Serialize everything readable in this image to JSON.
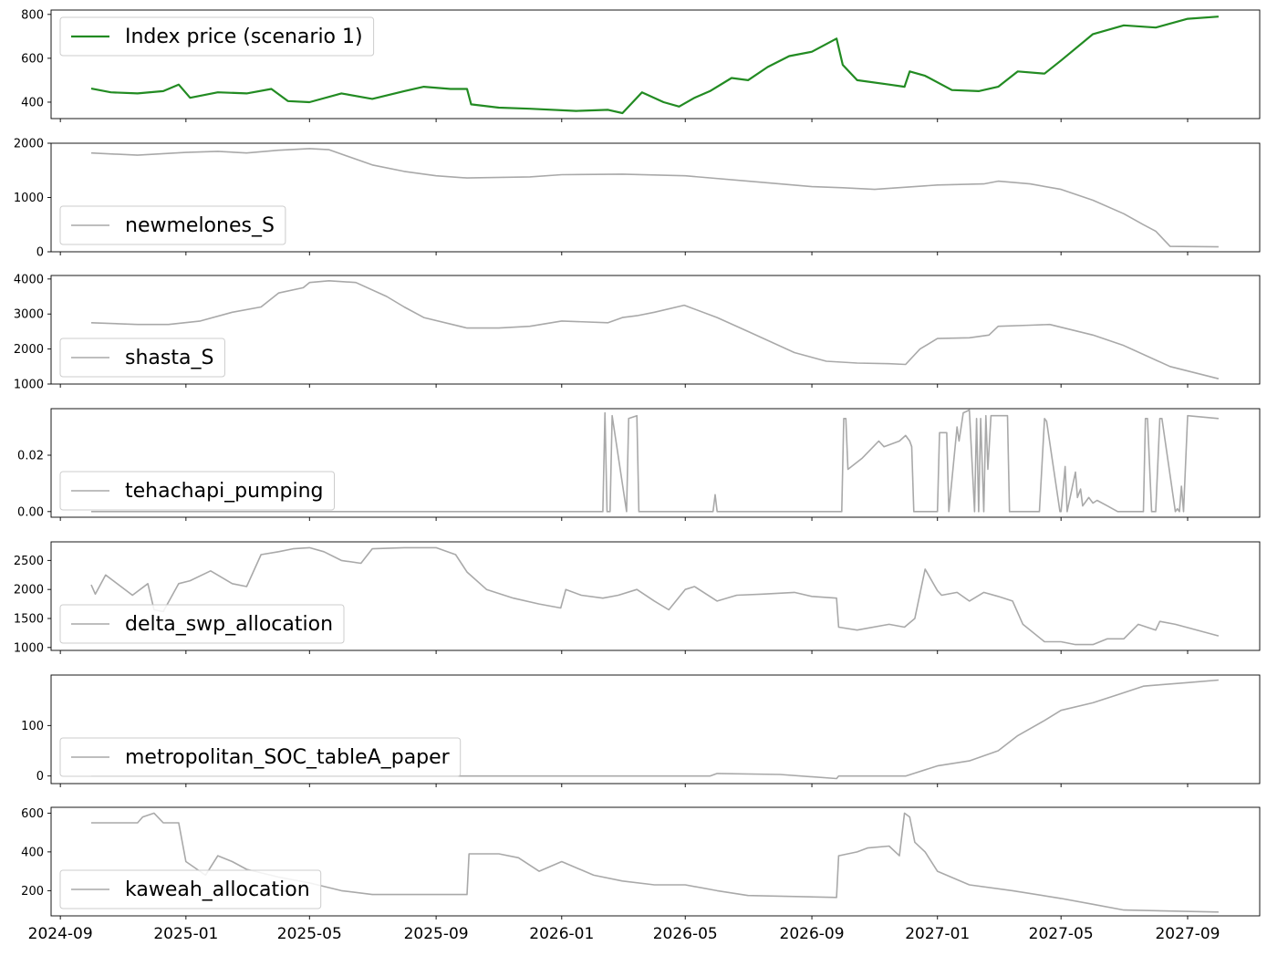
{
  "chart_data": {
    "type": "line",
    "x_ticks": [
      "2024-09",
      "2025-01",
      "2025-05",
      "2025-09",
      "2026-01",
      "2026-05",
      "2026-09",
      "2027-01",
      "2027-05",
      "2027-09"
    ],
    "colors": {
      "primary": "#228b22",
      "secondary": "#a9a9a9",
      "axis": "#000000"
    },
    "legend_position": "upper-left / lower-left",
    "panels": [
      {
        "name": "Index price (scenario 1)",
        "color": "#228b22",
        "ylim": [
          325,
          820
        ],
        "yticks": [
          400,
          600,
          800
        ],
        "ytick_labels": [
          "400",
          "600",
          "800"
        ],
        "legend_position": "upper-left",
        "x": [
          "2024-10-01",
          "2024-10-20",
          "2024-11-15",
          "2024-12-10",
          "2024-12-25",
          "2025-01-05",
          "2025-02-01",
          "2025-03-01",
          "2025-03-25",
          "2025-04-10",
          "2025-05-01",
          "2025-06-01",
          "2025-07-01",
          "2025-08-01",
          "2025-08-20",
          "2025-09-15",
          "2025-10-01",
          "2025-10-05",
          "2025-11-01",
          "2025-12-01",
          "2026-01-15",
          "2026-02-15",
          "2026-03-01",
          "2026-03-20",
          "2026-04-10",
          "2026-04-25",
          "2026-05-10",
          "2026-05-25",
          "2026-06-15",
          "2026-07-01",
          "2026-07-20",
          "2026-08-10",
          "2026-09-01",
          "2026-09-25",
          "2026-10-01",
          "2026-10-15",
          "2026-11-15",
          "2026-11-30",
          "2026-12-05",
          "2026-12-20",
          "2027-01-15",
          "2027-02-10",
          "2027-03-01",
          "2027-03-20",
          "2027-04-15",
          "2027-05-01",
          "2027-06-01",
          "2027-07-01",
          "2027-08-01",
          "2027-09-01",
          "2027-10-01"
        ],
        "values": [
          462,
          445,
          440,
          450,
          480,
          420,
          445,
          440,
          460,
          405,
          400,
          440,
          415,
          450,
          470,
          460,
          460,
          390,
          375,
          370,
          360,
          365,
          350,
          445,
          400,
          380,
          420,
          450,
          510,
          500,
          560,
          610,
          630,
          690,
          570,
          500,
          480,
          470,
          540,
          520,
          455,
          450,
          470,
          540,
          530,
          590,
          710,
          750,
          740,
          780,
          790
        ]
      },
      {
        "name": "newmelones_S",
        "color": "#a9a9a9",
        "ylim": [
          0,
          2000
        ],
        "yticks": [
          0,
          1000,
          2000
        ],
        "ytick_labels": [
          "0",
          "1000",
          "2000"
        ],
        "legend_position": "lower-left",
        "x": [
          "2024-10-01",
          "2024-11-15",
          "2025-01-01",
          "2025-02-01",
          "2025-03-01",
          "2025-04-01",
          "2025-05-01",
          "2025-05-20",
          "2025-07-01",
          "2025-08-01",
          "2025-09-01",
          "2025-10-01",
          "2025-12-01",
          "2026-01-01",
          "2026-03-01",
          "2026-05-01",
          "2026-07-01",
          "2026-09-01",
          "2026-10-01",
          "2026-11-01",
          "2027-01-01",
          "2027-02-15",
          "2027-03-01",
          "2027-04-01",
          "2027-05-01",
          "2027-06-01",
          "2027-07-01",
          "2027-07-20",
          "2027-08-01",
          "2027-08-15",
          "2027-10-01"
        ],
        "values": [
          1820,
          1780,
          1830,
          1850,
          1820,
          1870,
          1900,
          1880,
          1600,
          1480,
          1400,
          1360,
          1380,
          1420,
          1430,
          1400,
          1300,
          1200,
          1180,
          1150,
          1230,
          1250,
          1300,
          1250,
          1150,
          950,
          700,
          500,
          380,
          100,
          90
        ]
      },
      {
        "name": "shasta_S",
        "color": "#a9a9a9",
        "ylim": [
          1000,
          4100
        ],
        "yticks": [
          1000,
          2000,
          3000,
          4000
        ],
        "ytick_labels": [
          "1000",
          "2000",
          "3000",
          "4000"
        ],
        "legend_position": "lower-left",
        "x": [
          "2024-10-01",
          "2024-11-15",
          "2024-12-15",
          "2025-01-15",
          "2025-02-15",
          "2025-03-15",
          "2025-04-01",
          "2025-04-25",
          "2025-05-01",
          "2025-05-20",
          "2025-06-15",
          "2025-07-15",
          "2025-08-01",
          "2025-08-20",
          "2025-10-01",
          "2025-11-01",
          "2025-12-01",
          "2026-01-01",
          "2026-02-15",
          "2026-03-01",
          "2026-03-15",
          "2026-04-01",
          "2026-04-30",
          "2026-06-01",
          "2026-07-01",
          "2026-08-15",
          "2026-09-15",
          "2026-10-15",
          "2026-11-15",
          "2026-12-01",
          "2026-12-15",
          "2027-01-01",
          "2027-02-01",
          "2027-02-20",
          "2027-03-01",
          "2027-04-01",
          "2027-04-20",
          "2027-06-01",
          "2027-07-01",
          "2027-08-15",
          "2027-10-01"
        ],
        "values": [
          2750,
          2700,
          2700,
          2800,
          3050,
          3200,
          3600,
          3750,
          3900,
          3950,
          3900,
          3500,
          3200,
          2900,
          2600,
          2600,
          2650,
          2800,
          2750,
          2900,
          2950,
          3050,
          3250,
          2900,
          2500,
          1900,
          1650,
          1600,
          1580,
          1560,
          2000,
          2300,
          2320,
          2400,
          2650,
          2680,
          2700,
          2400,
          2100,
          1500,
          1150
        ]
      },
      {
        "name": "tehachapi_pumping",
        "color": "#a9a9a9",
        "ylim": [
          -0.002,
          0.0365
        ],
        "yticks": [
          0.0,
          0.02
        ],
        "ytick_labels": [
          "0.00",
          "0.02"
        ],
        "legend_position": "lower-left",
        "x": [
          "2024-10-01",
          "2026-02-10",
          "2026-02-12",
          "2026-02-14",
          "2026-02-17",
          "2026-02-19",
          "2026-03-05",
          "2026-03-07",
          "2026-03-15",
          "2026-03-17",
          "2026-05-28",
          "2026-05-30",
          "2026-06-01",
          "2026-09-30",
          "2026-10-02",
          "2026-10-04",
          "2026-10-06",
          "2026-10-20",
          "2026-11-05",
          "2026-11-10",
          "2026-11-25",
          "2026-12-01",
          "2026-12-05",
          "2026-12-07",
          "2026-12-09",
          "2027-01-01",
          "2027-01-03",
          "2027-01-10",
          "2027-01-12",
          "2027-01-20",
          "2027-01-22",
          "2027-01-24",
          "2027-01-26",
          "2027-02-01",
          "2027-02-06",
          "2027-02-08",
          "2027-02-10",
          "2027-02-12",
          "2027-02-15",
          "2027-02-17",
          "2027-02-19",
          "2027-02-22",
          "2027-03-01",
          "2027-03-10",
          "2027-03-12",
          "2027-03-15",
          "2027-04-10",
          "2027-04-15",
          "2027-04-17",
          "2027-04-30",
          "2027-05-01",
          "2027-05-05",
          "2027-05-07",
          "2027-05-15",
          "2027-05-17",
          "2027-05-20",
          "2027-05-22",
          "2027-05-28",
          "2027-06-01",
          "2027-06-05",
          "2027-06-15",
          "2027-06-25",
          "2027-07-05",
          "2027-07-20",
          "2027-07-22",
          "2027-07-24",
          "2027-07-28",
          "2027-08-01",
          "2027-08-05",
          "2027-08-07",
          "2027-08-20",
          "2027-08-22",
          "2027-08-24",
          "2027-08-26",
          "2027-08-28",
          "2027-09-01",
          "2027-10-01"
        ],
        "values": [
          0,
          0,
          0.035,
          0,
          0,
          0.034,
          0,
          0.033,
          0.034,
          0,
          0,
          0.006,
          0,
          0,
          0.033,
          0.033,
          0.015,
          0.019,
          0.025,
          0.023,
          0.025,
          0.027,
          0.025,
          0.023,
          0,
          0,
          0.028,
          0.028,
          0,
          0.03,
          0.025,
          0.03,
          0.035,
          0.036,
          0,
          0.033,
          0,
          0.033,
          0,
          0.034,
          0.015,
          0.034,
          0.034,
          0.034,
          0,
          0,
          0,
          0.033,
          0.032,
          0,
          0,
          0.016,
          0,
          0.014,
          0.005,
          0.008,
          0.002,
          0.005,
          0.003,
          0.004,
          0.002,
          0,
          0,
          0,
          0.033,
          0.033,
          0,
          0,
          0.033,
          0.033,
          0,
          0.001,
          0,
          0.009,
          0,
          0.034,
          0.033
        ]
      },
      {
        "name": "delta_swp_allocation",
        "color": "#a9a9a9",
        "ylim": [
          950,
          2820
        ],
        "yticks": [
          1000,
          1500,
          2000,
          2500
        ],
        "ytick_labels": [
          "1000",
          "1500",
          "2000",
          "2500"
        ],
        "legend_position": "lower-left",
        "x": [
          "2024-10-01",
          "2024-10-05",
          "2024-10-15",
          "2024-11-10",
          "2024-11-25",
          "2024-12-01",
          "2024-12-10",
          "2024-12-25",
          "2025-01-05",
          "2025-01-25",
          "2025-02-15",
          "2025-03-01",
          "2025-03-15",
          "2025-04-01",
          "2025-04-15",
          "2025-05-01",
          "2025-05-15",
          "2025-06-01",
          "2025-06-20",
          "2025-07-01",
          "2025-08-01",
          "2025-09-01",
          "2025-09-20",
          "2025-10-01",
          "2025-10-20",
          "2025-11-15",
          "2025-12-10",
          "2025-12-31",
          "2026-01-05",
          "2026-01-20",
          "2026-02-10",
          "2026-02-25",
          "2026-03-15",
          "2026-04-01",
          "2026-04-15",
          "2026-05-01",
          "2026-05-10",
          "2026-06-01",
          "2026-06-20",
          "2026-07-15",
          "2026-08-15",
          "2026-09-01",
          "2026-09-25",
          "2026-09-27",
          "2026-10-15",
          "2026-11-15",
          "2026-11-30",
          "2026-12-10",
          "2026-12-20",
          "2027-01-01",
          "2027-01-05",
          "2027-01-20",
          "2027-02-01",
          "2027-02-15",
          "2027-03-01",
          "2027-03-15",
          "2027-03-25",
          "2027-04-15",
          "2027-05-01",
          "2027-05-15",
          "2027-06-01",
          "2027-06-15",
          "2027-07-01",
          "2027-07-15",
          "2027-08-01",
          "2027-08-05",
          "2027-08-20",
          "2027-10-01"
        ],
        "values": [
          2080,
          1920,
          2250,
          1900,
          2100,
          1650,
          1620,
          2100,
          2150,
          2320,
          2100,
          2050,
          2600,
          2650,
          2700,
          2720,
          2650,
          2500,
          2450,
          2700,
          2720,
          2720,
          2600,
          2300,
          2000,
          1850,
          1750,
          1680,
          2000,
          1900,
          1850,
          1900,
          2000,
          1800,
          1650,
          2000,
          2050,
          1800,
          1900,
          1920,
          1950,
          1880,
          1850,
          1350,
          1300,
          1400,
          1350,
          1500,
          2350,
          1980,
          1900,
          1950,
          1800,
          1950,
          1880,
          1800,
          1400,
          1100,
          1100,
          1050,
          1050,
          1150,
          1150,
          1400,
          1300,
          1450,
          1400,
          1200
        ]
      },
      {
        "name": "metropolitan_SOC_tableA_paper",
        "color": "#a9a9a9",
        "ylim": [
          -15,
          200
        ],
        "yticks": [
          0,
          100
        ],
        "ytick_labels": [
          "0",
          "100"
        ],
        "legend_position": "lower-left",
        "x": [
          "2024-10-01",
          "2026-05-25",
          "2026-06-01",
          "2026-08-01",
          "2026-09-25",
          "2026-09-27",
          "2026-12-01",
          "2027-01-01",
          "2027-02-01",
          "2027-03-01",
          "2027-03-20",
          "2027-04-15",
          "2027-05-01",
          "2027-06-01",
          "2027-07-01",
          "2027-07-20",
          "2027-08-01",
          "2027-09-01",
          "2027-10-01"
        ],
        "values": [
          0,
          0,
          5,
          3,
          -5,
          0,
          0,
          20,
          30,
          50,
          80,
          110,
          130,
          145,
          165,
          178,
          180,
          185,
          190
        ]
      },
      {
        "name": "kaweah_allocation",
        "color": "#a9a9a9",
        "ylim": [
          70,
          630
        ],
        "yticks": [
          200,
          400,
          600
        ],
        "ytick_labels": [
          "200",
          "400",
          "600"
        ],
        "legend_position": "lower-left",
        "x": [
          "2024-10-01",
          "2024-11-15",
          "2024-11-20",
          "2024-12-01",
          "2024-12-10",
          "2024-12-25",
          "2025-01-01",
          "2025-01-20",
          "2025-02-01",
          "2025-02-15",
          "2025-03-01",
          "2025-04-01",
          "2025-05-01",
          "2025-06-01",
          "2025-07-01",
          "2025-09-01",
          "2025-10-01",
          "2025-10-03",
          "2025-11-01",
          "2025-11-20",
          "2025-12-10",
          "2026-01-01",
          "2026-02-01",
          "2026-03-01",
          "2026-04-01",
          "2026-05-01",
          "2026-06-01",
          "2026-07-01",
          "2026-09-25",
          "2026-09-27",
          "2026-10-15",
          "2026-10-25",
          "2026-11-15",
          "2026-11-25",
          "2026-11-30",
          "2026-12-05",
          "2026-12-10",
          "2026-12-20",
          "2027-01-01",
          "2027-02-01",
          "2027-03-15",
          "2027-05-01",
          "2027-06-01",
          "2027-07-01",
          "2027-10-01"
        ],
        "values": [
          550,
          550,
          580,
          600,
          550,
          550,
          350,
          280,
          380,
          350,
          310,
          270,
          240,
          200,
          180,
          180,
          180,
          390,
          390,
          370,
          300,
          350,
          280,
          250,
          230,
          230,
          200,
          175,
          165,
          380,
          400,
          420,
          430,
          380,
          600,
          580,
          450,
          400,
          300,
          230,
          200,
          160,
          130,
          100,
          90
        ]
      }
    ]
  }
}
